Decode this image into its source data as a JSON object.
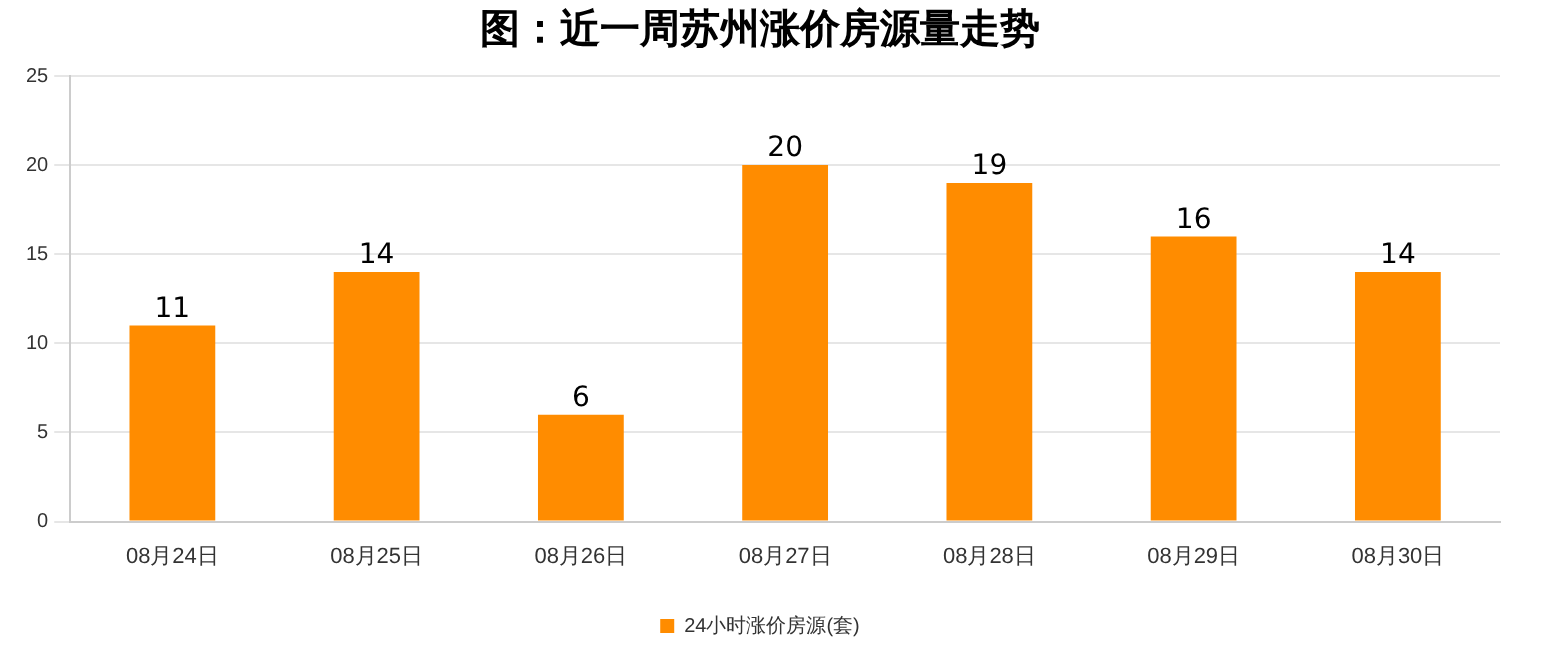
{
  "chart_data": {
    "type": "bar",
    "title": "图：近一周苏州涨价房源量走势",
    "categories": [
      "08月24日",
      "08月25日",
      "08月26日",
      "08月27日",
      "08月28日",
      "08月29日",
      "08月30日"
    ],
    "series": [
      {
        "name": "24小时涨价房源(套)",
        "color": "#ff8c00",
        "values": [
          11,
          14,
          6,
          20,
          19,
          16,
          14
        ]
      }
    ],
    "ylim": [
      0,
      25
    ],
    "yticks": [
      0,
      5,
      10,
      15,
      20,
      25
    ],
    "grid": "y",
    "legend": "bottom",
    "data_labels": true
  }
}
